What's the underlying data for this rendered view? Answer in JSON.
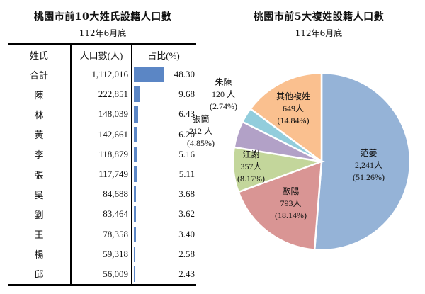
{
  "left": {
    "title": "桃園市前10大姓氏設籍人口數",
    "subtitle": "112年6月底",
    "headers": [
      "姓氏",
      "人口數(人)",
      "占比(%)"
    ],
    "rows": [
      {
        "name": "合計",
        "count": "1,112,016",
        "pct": "48.30",
        "value": 48.3
      },
      {
        "name": "陳",
        "count": "222,851",
        "pct": "9.68",
        "value": 9.68
      },
      {
        "name": "林",
        "count": "148,039",
        "pct": "6.43",
        "value": 6.43
      },
      {
        "name": "黃",
        "count": "142,661",
        "pct": "6.20",
        "value": 6.2
      },
      {
        "name": "李",
        "count": "118,879",
        "pct": "5.16",
        "value": 5.16
      },
      {
        "name": "張",
        "count": "117,749",
        "pct": "5.11",
        "value": 5.11
      },
      {
        "name": "吳",
        "count": "84,688",
        "pct": "3.68",
        "value": 3.68
      },
      {
        "name": "劉",
        "count": "83,464",
        "pct": "3.62",
        "value": 3.62
      },
      {
        "name": "王",
        "count": "78,358",
        "pct": "3.40",
        "value": 3.4
      },
      {
        "name": "楊",
        "count": "59,318",
        "pct": "2.58",
        "value": 2.58
      },
      {
        "name": "邱",
        "count": "56,009",
        "pct": "2.43",
        "value": 2.43
      }
    ],
    "bar_color": "#5b86c5"
  },
  "right": {
    "title": "桃園市前5大複姓設籍人口數",
    "subtitle": "112年6月底",
    "slices": [
      {
        "name": "范姜",
        "count": "2,241人",
        "pct": "(51.26%)",
        "value": 51.26,
        "color": "#95b3d7"
      },
      {
        "name": "歐陽",
        "count": "793人",
        "pct": "(18.14%)",
        "value": 18.14,
        "color": "#d99594"
      },
      {
        "name": "江謝",
        "count": "357人",
        "pct": "(8.17%)",
        "value": 8.17,
        "color": "#c3d69b"
      },
      {
        "name": "張簡",
        "count": "212 人",
        "pct": "(4.85%)",
        "value": 4.85,
        "color": "#b2a1c7"
      },
      {
        "name": "朱陳",
        "count": "120 人",
        "pct": "(2.74%)",
        "value": 2.74,
        "color": "#92cddc"
      },
      {
        "name": "其他複姓",
        "count": "649人",
        "pct": "(14.84%)",
        "value": 14.84,
        "color": "#fac08f"
      }
    ]
  },
  "chart_data": [
    {
      "type": "table",
      "title": "桃園市前10大姓氏設籍人口數",
      "subtitle": "112年6月底",
      "columns": [
        "姓氏",
        "人口數(人)",
        "占比(%)"
      ],
      "categories": [
        "合計",
        "陳",
        "林",
        "黃",
        "李",
        "張",
        "吳",
        "劉",
        "王",
        "楊",
        "邱"
      ],
      "series": [
        {
          "name": "人口數(人)",
          "values": [
            1112016,
            222851,
            148039,
            142661,
            118879,
            117749,
            84688,
            83464,
            78358,
            59318,
            56009
          ]
        },
        {
          "name": "占比(%)",
          "values": [
            48.3,
            9.68,
            6.43,
            6.2,
            5.16,
            5.11,
            3.68,
            3.62,
            3.4,
            2.58,
            2.43
          ]
        }
      ]
    },
    {
      "type": "pie",
      "title": "桃園市前5大複姓設籍人口數",
      "subtitle": "112年6月底",
      "categories": [
        "范姜",
        "歐陽",
        "江謝",
        "張簡",
        "朱陳",
        "其他複姓"
      ],
      "values": [
        2241,
        793,
        357,
        212,
        120,
        649
      ],
      "percentages": [
        51.26,
        18.14,
        8.17,
        4.85,
        2.74,
        14.84
      ],
      "unit": "人"
    }
  ]
}
